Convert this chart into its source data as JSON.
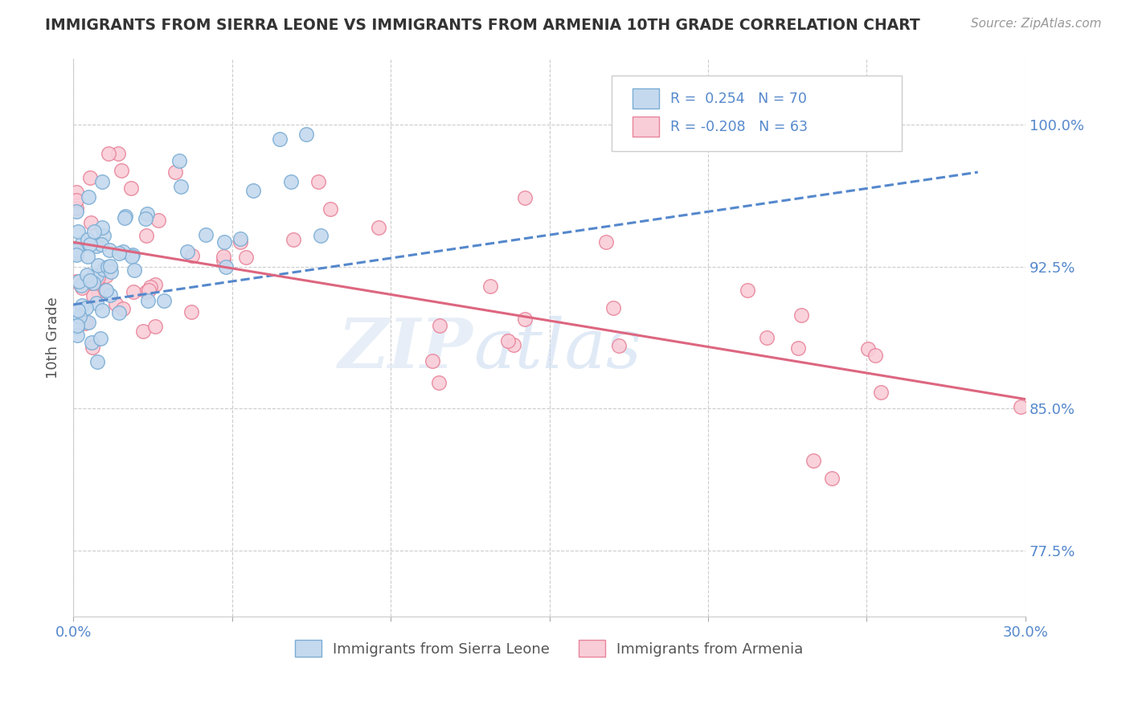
{
  "title": "IMMIGRANTS FROM SIERRA LEONE VS IMMIGRANTS FROM ARMENIA 10TH GRADE CORRELATION CHART",
  "source_text": "Source: ZipAtlas.com",
  "ylabel": "10th Grade",
  "R_sierra": "0.254",
  "N_sierra": "70",
  "R_armenia": "-0.208",
  "N_armenia": "63",
  "color_sierra_fill": "#c5d9ee",
  "color_sierra_edge": "#7aadd4",
  "color_armenia_fill": "#f9cdd8",
  "color_armenia_edge": "#e8849a",
  "color_sierra_line": "#5588cc",
  "color_armenia_line": "#dd6680",
  "color_axis_text": "#5588cc",
  "watermark_zip": "ZIP",
  "watermark_atlas": "atlas",
  "legend_sierra": "Immigrants from Sierra Leone",
  "legend_armenia": "Immigrants from Armenia",
  "xlim": [
    0.0,
    0.3
  ],
  "ylim": [
    0.74,
    1.035
  ],
  "y_ticks": [
    0.775,
    0.85,
    0.925,
    1.0
  ],
  "y_tick_labels": [
    "77.5%",
    "85.0%",
    "92.5%",
    "100.0%"
  ],
  "x_ticks": [
    0.0,
    0.05,
    0.1,
    0.15,
    0.2,
    0.25,
    0.3
  ],
  "x_tick_labels": [
    "0.0%",
    "",
    "",
    "",
    "",
    "",
    "30.0%"
  ],
  "sl_trend_x0": 0.0,
  "sl_trend_x1": 0.285,
  "sl_trend_y0": 0.905,
  "sl_trend_y1": 0.975,
  "arm_trend_x0": 0.0,
  "arm_trend_x1": 0.3,
  "arm_trend_y0": 0.938,
  "arm_trend_y1": 0.855
}
